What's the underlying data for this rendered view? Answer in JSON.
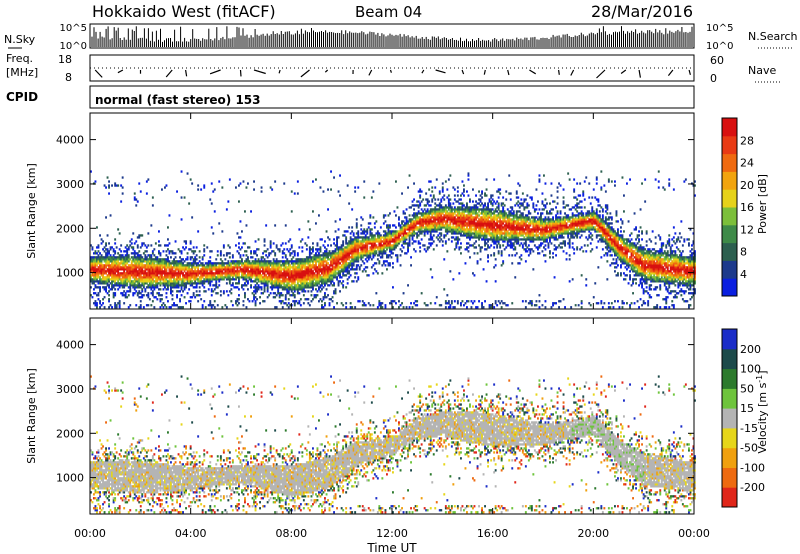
{
  "header": {
    "station": "Hokkaido West (fitACF)",
    "beam": "Beam 04",
    "date": "28/Mar/2016"
  },
  "strips": {
    "nsky_label": "N.Sky",
    "nsearch_label": "N.Search",
    "freq_label_1": "Freq.",
    "freq_label_2": "[MHz]",
    "nave_label": "Nave",
    "cpid_label": "CPID",
    "left_ticks_top": [
      "10^5",
      "10^0"
    ],
    "right_ticks_top": [
      "10^5",
      "10^0"
    ],
    "left_ticks_freq": [
      "18",
      "8"
    ],
    "right_ticks_nave": [
      "60",
      "0"
    ],
    "cpid_text": "normal (fast stereo) 153"
  },
  "colors": {
    "power_scale": [
      "#0a1fe0",
      "#1d3a8c",
      "#2c5f4f",
      "#3e8a48",
      "#7cbf3a",
      "#e6d21a",
      "#f2a40e",
      "#ef6a10",
      "#e83a14",
      "#d81010"
    ],
    "velocity_scale": [
      "#1a2cc8",
      "#1c4a4a",
      "#2c7a2c",
      "#6ec43c",
      "#b4b4b4",
      "#e6d61a",
      "#f0a00e",
      "#ee6a10",
      "#e0261a"
    ]
  },
  "chart_data": [
    {
      "type": "heatmap",
      "panel": "power",
      "x": [
        "00:00",
        "04:00",
        "08:00",
        "12:00",
        "16:00",
        "20:00",
        "00:00"
      ],
      "xlim": [
        0,
        24
      ],
      "ylabel": "Slant Range [km]",
      "ylim": [
        180,
        4600
      ],
      "yticks": [
        1000,
        2000,
        3000,
        4000
      ],
      "band_center_km": [
        [
          0,
          1050
        ],
        [
          2,
          1000
        ],
        [
          4,
          950
        ],
        [
          6,
          1050
        ],
        [
          8,
          900
        ],
        [
          9.5,
          1100
        ],
        [
          10.5,
          1500
        ],
        [
          12,
          1700
        ],
        [
          13,
          2100
        ],
        [
          14,
          2200
        ],
        [
          16,
          2050
        ],
        [
          18,
          1950
        ],
        [
          20,
          2150
        ],
        [
          21,
          1550
        ],
        [
          22,
          1150
        ],
        [
          24,
          1000
        ]
      ],
      "colorbar_label": "Power [dB]",
      "colorbar_ticks": [
        "4",
        "8",
        "12",
        "16",
        "20",
        "24",
        "28"
      ],
      "colorbar_range": [
        0,
        30
      ]
    },
    {
      "type": "heatmap",
      "panel": "velocity",
      "x": [
        "00:00",
        "04:00",
        "08:00",
        "12:00",
        "16:00",
        "20:00",
        "00:00"
      ],
      "xlim": [
        0,
        24
      ],
      "xlabel": "Time UT",
      "ylabel": "Slant Range [km]",
      "ylim": [
        180,
        4600
      ],
      "yticks": [
        1000,
        2000,
        3000,
        4000
      ],
      "colorbar_label": "Velocity [m s^-1]",
      "colorbar_ticks": [
        "200",
        "100",
        "50",
        "15",
        "-15",
        "-50",
        "-100",
        "-200"
      ],
      "colorbar_range": [
        -250,
        250
      ]
    }
  ]
}
